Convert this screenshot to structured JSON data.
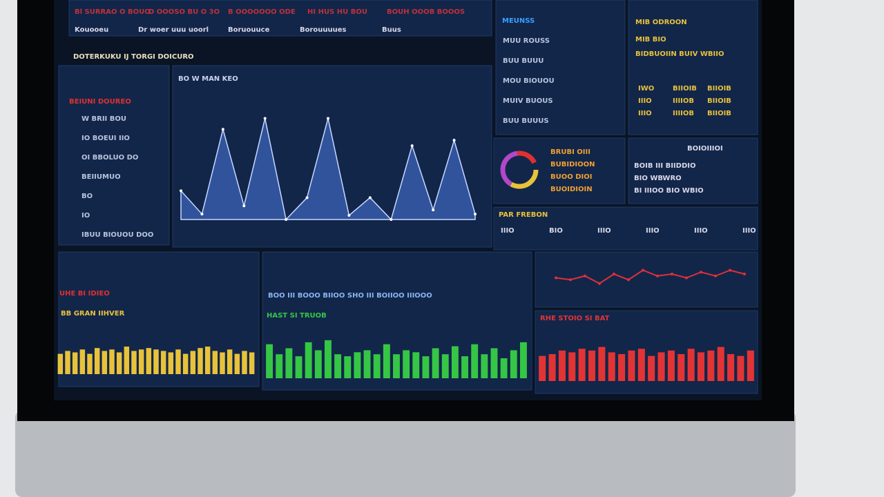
{
  "title": "DOTERKUKU IJ TORGI DOICURO",
  "header": {
    "top": [
      "Bl SURRAO O BOUO",
      "D OOOSO BU O 3O",
      "B OOOOOOO ODE",
      "HI HUS HU BOU",
      "BOUH OOOB BOOOS"
    ],
    "nav": [
      "Kouooeu",
      "Dr woer uuu uoorl",
      "Boruouuce",
      "Borouuuues",
      "Buus"
    ]
  },
  "left_panel": {
    "title": "BEIUNI DOUREO",
    "rows": [
      "W BRII BOU",
      "IO BOEUI IIO",
      "OI BBOLUO DO",
      "BEIIUMUO",
      "BO",
      "IO",
      "IBUU BIOUOU DOO"
    ]
  },
  "right_a": {
    "title": "MEUNSS",
    "rows": [
      "MUU ROUSS",
      "BUU BUUU",
      "MOU BIOUOU",
      "MUIV BUOUS",
      "BUU BUUUS"
    ]
  },
  "right_b": {
    "title": "MIB ODROON",
    "rows": [
      "MIB BIO",
      "BIDBUOIIN BUIV WBIIO"
    ],
    "cells": [
      "IWO",
      "BIIOIB",
      "BIIOIB",
      "IIIO",
      "IIIIOB",
      "BIIOIB",
      "IIIO",
      "IIIIOB",
      "BIIOIB"
    ]
  },
  "donut_panel": {
    "labels": [
      "BRUBI OIII",
      "BUBIDIOON",
      "BUOO DIOI",
      "BUOIDIOIN"
    ]
  },
  "right_d": {
    "title": "BOIOIIIOI",
    "rows": [
      "BOIB III BIIDDIO",
      "BIO WBWRO",
      "BI IIIOO BIO WBIO"
    ]
  },
  "right_e": {
    "title": "PAR FREBON",
    "rows": [
      "IIIO",
      "BIO",
      "IIIO",
      "IIIO",
      "IIIO",
      "IIIO"
    ]
  },
  "bottom_left": {
    "title": "UHE BI IDIEO"
  },
  "bottom_mid": {
    "title": "BOO III BOOO BIIOO SHO III BOIIOO IIIOOO"
  },
  "chart_data": [
    {
      "type": "area",
      "title": "BO W MAN KEO",
      "color": "#3b63b8",
      "values": [
        21,
        4,
        66,
        10,
        74,
        0,
        16,
        74,
        3,
        16,
        0,
        54,
        7,
        58,
        4
      ],
      "ylim": [
        0,
        100
      ]
    },
    {
      "type": "line",
      "color": "#e0303a",
      "values": [
        50,
        45,
        55,
        35,
        60,
        45,
        70,
        55,
        60,
        50,
        65,
        55,
        70,
        60
      ],
      "ylim": [
        0,
        100
      ]
    },
    {
      "type": "bar",
      "title": "BB GRAN IIHVER",
      "color": "#e8c23a",
      "values": [
        70,
        80,
        75,
        85,
        70,
        90,
        80,
        85,
        75,
        95,
        80,
        85,
        90,
        85,
        80,
        75,
        85,
        70,
        80,
        90,
        95,
        80,
        75,
        85,
        70,
        80,
        75
      ],
      "ylim": [
        0,
        100
      ]
    },
    {
      "type": "bar",
      "title": "HAST SI TRUOB",
      "color": "#35c645",
      "values": [
        85,
        60,
        75,
        55,
        90,
        70,
        95,
        60,
        55,
        65,
        70,
        60,
        85,
        60,
        70,
        65,
        55,
        75,
        60,
        80,
        55,
        85,
        60,
        75,
        50,
        70,
        90
      ],
      "ylim": [
        0,
        100
      ]
    },
    {
      "type": "bar",
      "title": "RHE STOIO SI BAT",
      "color": "#e23434",
      "values": [
        70,
        75,
        85,
        80,
        90,
        85,
        95,
        80,
        75,
        85,
        90,
        70,
        80,
        85,
        75,
        90,
        80,
        85,
        95,
        75,
        70,
        85
      ],
      "ylim": [
        0,
        100
      ]
    }
  ]
}
